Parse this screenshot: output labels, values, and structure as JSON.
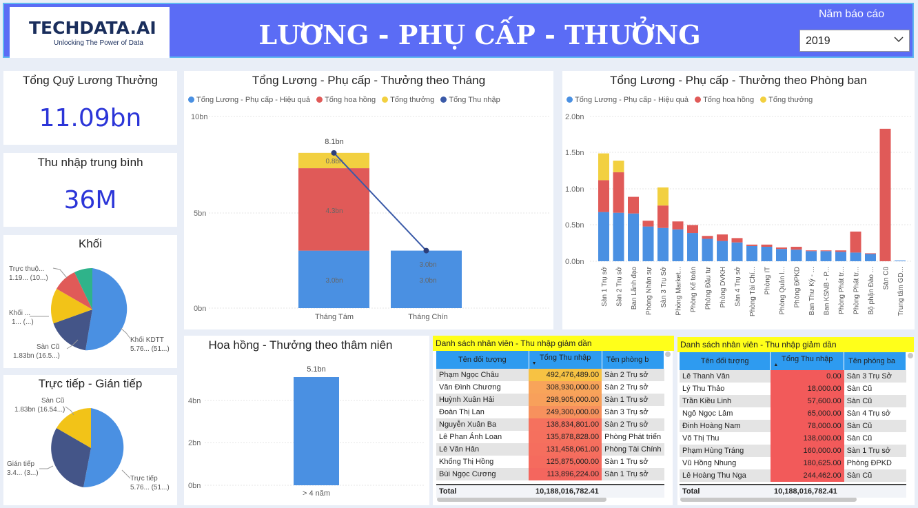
{
  "header": {
    "logo_text": "TECHDATA.AI",
    "logo_tagline": "Unlocking The Power of Data",
    "title": "LƯƠNG - PHỤ CẤP - THƯỞNG",
    "year_label": "Năm báo cáo",
    "year_value": "2019"
  },
  "kpi": {
    "total_title": "Tổng Quỹ Lương Thưởng",
    "total_value": "11.09bn",
    "avg_title": "Thu nhập trung bình",
    "avg_value": "36M"
  },
  "pie_khoi": {
    "title": "Khối",
    "labels": [
      {
        "line1": "Trực thuộ...",
        "line2": "1.19... (10...)"
      },
      {
        "line1": "Khối ...",
        "line2": "1... (...)"
      },
      {
        "line1": "Sàn Cũ",
        "line2": "1.83bn (16.5...)"
      },
      {
        "line1": "Khối KDTT",
        "line2": "5.76... (51...)"
      }
    ],
    "colors": [
      "#4a90e2",
      "#445588",
      "#f2c318",
      "#e05a58",
      "#2fb38a"
    ]
  },
  "pie_tt": {
    "title": "Trực tiếp - Gián tiếp",
    "labels": [
      {
        "line1": "Sàn Cũ",
        "line2": "1.83bn (16.54...)"
      },
      {
        "line1": "Gián tiếp",
        "line2": "3.4... (3...)"
      },
      {
        "line1": "Trực tiếp",
        "line2": "5.76... (51...)"
      }
    ],
    "colors": [
      "#4a90e2",
      "#445588",
      "#f2c318"
    ]
  },
  "monthly": {
    "title": "Tổng Lương - Phụ cấp - Thưởng theo Tháng",
    "legend": [
      "Tổng Lương - Phụ cấp - Hiệu quả",
      "Tổng hoa hồng",
      "Tổng thưởng",
      "Tổng Thu nhập"
    ],
    "y_ticks": [
      "10bn",
      "5bn",
      "0bn"
    ],
    "total_label": "8.1bn",
    "seg_labels": [
      "0.8bn",
      "4.3bn",
      "3.0bn",
      "3.0bn",
      "3.0bn"
    ],
    "colors": [
      "#4a90e2",
      "#e05a58",
      "#f2d040",
      "#3a5aa8"
    ]
  },
  "chart_data": [
    {
      "type": "bar",
      "title": "Tổng Lương - Phụ cấp - Thưởng theo Tháng",
      "categories": [
        "Tháng Tám",
        "Tháng Chín"
      ],
      "series": [
        {
          "name": "Tổng Lương - Phụ cấp - Hiệu quả",
          "values": [
            3.0,
            3.0
          ]
        },
        {
          "name": "Tổng hoa hồng",
          "values": [
            4.3,
            0
          ]
        },
        {
          "name": "Tổng thưởng",
          "values": [
            0.8,
            0
          ]
        },
        {
          "name": "Tổng Thu nhập",
          "values": [
            8.1,
            3.0
          ]
        }
      ],
      "ylim": [
        0,
        10
      ],
      "legend": "top-left"
    },
    {
      "type": "bar",
      "title": "Tổng Lương - Phụ cấp - Thưởng theo Phòng ban",
      "categories": [
        "Sàn 1 Trụ sở",
        "Sàn 2 Trụ sở",
        "Ban Lãnh đạo",
        "Phòng Nhân sự",
        "Sàn 3 Trụ Sở",
        "Phòng Market...",
        "Phòng Kế toán",
        "Phòng Đầu tư",
        "Phòng DVKH",
        "Sàn 4 Trụ sở",
        "Phòng Tài Chí...",
        "Phòng IT",
        "Phòng Quản l...",
        "Phòng ĐPKD",
        "Ban Thư Ký - ...",
        "Ban KSNB - P...",
        "Phòng Phát tr...",
        "Phòng Phát tr...",
        "Bộ phận Đào ...",
        "Sàn Cũ",
        "Trung tâm GD..."
      ],
      "series": [
        {
          "name": "Tổng Lương - Phụ cấp - Hiệu quả",
          "values": [
            0.68,
            0.67,
            0.66,
            0.48,
            0.46,
            0.44,
            0.39,
            0.31,
            0.28,
            0.26,
            0.21,
            0.2,
            0.17,
            0.16,
            0.14,
            0.14,
            0.13,
            0.12,
            0.1,
            0,
            0.01
          ]
        },
        {
          "name": "Tổng hoa hồng",
          "values": [
            0.44,
            0.56,
            0.23,
            0.08,
            0.31,
            0.11,
            0.11,
            0.04,
            0.09,
            0.06,
            0.02,
            0.03,
            0.02,
            0.04,
            0.01,
            0.01,
            0.02,
            0.29,
            0.01,
            1.83,
            0
          ]
        },
        {
          "name": "Tổng thưởng",
          "values": [
            0.37,
            0.16,
            0,
            0,
            0.25,
            0,
            0,
            0,
            0,
            0,
            0,
            0,
            0,
            0,
            0,
            0,
            0,
            0,
            0,
            0,
            0
          ]
        }
      ],
      "ylim": [
        0,
        2.0
      ],
      "legend": "top-left"
    },
    {
      "type": "bar",
      "title": "Hoa hồng - Thưởng theo thâm niên",
      "categories": [
        "> 4 năm"
      ],
      "values": [
        5.1
      ],
      "ylim": [
        0,
        6
      ]
    }
  ],
  "dept": {
    "title": "Tổng Lương - Phụ cấp - Thưởng theo Phòng ban",
    "legend": [
      "Tổng Lương - Phụ cấp - Hiệu quả",
      "Tổng hoa hồng",
      "Tổng thưởng"
    ],
    "y_ticks": [
      "2.0bn",
      "1.5bn",
      "1.0bn",
      "0.5bn",
      "0.0bn"
    ]
  },
  "seniority": {
    "title": "Hoa hồng - Thưởng theo thâm niên",
    "y_ticks": [
      "4bn",
      "2bn",
      "0bn"
    ],
    "value_label": "5.1bn"
  },
  "table_left": {
    "banner": "Danh sách nhân viên - Thu nhập giảm dần",
    "headers": [
      "Tên đối tượng",
      "Tổng Thu nhập",
      "Tên phòng b"
    ],
    "rows": [
      [
        "Phạm Ngọc Châu",
        "492,476,489.00",
        "Sàn 2 Trụ sở"
      ],
      [
        "Văn Đình Chương",
        "308,930,000.00",
        "Sàn 2 Trụ sở"
      ],
      [
        "Huỳnh Xuân Hải",
        "298,905,000.00",
        "Sàn 1 Trụ sở"
      ],
      [
        "Đoàn Thị Lan",
        "249,300,000.00",
        "Sàn 3 Trụ sở"
      ],
      [
        "Nguyễn Xuân Ba",
        "138,834,801.00",
        "Sàn 2 Trụ sở"
      ],
      [
        "Lê Phan Ánh Loan",
        "135,878,828.00",
        "Phòng Phát triển"
      ],
      [
        "Lê Văn Hân",
        "131,458,061.00",
        "Phòng Tài Chính"
      ],
      [
        "Khổng Thị Hồng",
        "125,875,000.00",
        "Sàn 1 Trụ sở"
      ],
      [
        "Bùi Ngọc Cương",
        "113,896,224.00",
        "Sàn 1 Trụ sở"
      ]
    ],
    "heat": [
      "#f7c243",
      "#f8a45a",
      "#f8a05b",
      "#f7915d",
      "#f5715e",
      "#f5705e",
      "#f56e5e",
      "#f56b5e",
      "#f4665e"
    ],
    "total_label": "Total",
    "total_value": "10,188,016,782.41"
  },
  "table_right": {
    "banner": "Danh sách nhân viên - Thu nhập giảm dần",
    "headers": [
      "Tên đối tượng",
      "Tổng Thu nhập",
      "Tên phòng ba"
    ],
    "rows": [
      [
        "Lê Thanh Vân",
        "0.00",
        "Sàn 3 Trụ Sở"
      ],
      [
        "Lý Thu Thảo",
        "18,000.00",
        "Sàn Cũ"
      ],
      [
        "Trần Kiều Linh",
        "57,600.00",
        "Sàn Cũ"
      ],
      [
        "Ngô Ngọc Lâm",
        "65,000.00",
        "Sàn 4 Trụ sở"
      ],
      [
        "Đinh Hoàng Nam",
        "78,000.00",
        "Sàn Cũ"
      ],
      [
        "Võ Thị Thu",
        "138,000.00",
        "Sàn Cũ"
      ],
      [
        "Phạm Hùng Tráng",
        "160,000.00",
        "Sàn 1 Trụ sở"
      ],
      [
        "Vũ Hồng Nhung",
        "180,625.00",
        "Phòng ĐPKD"
      ],
      [
        "Lê Hoàng Thu Nga",
        "244,462.00",
        "Sàn Cũ"
      ]
    ],
    "heat": "#f25a5a",
    "total_label": "Total",
    "total_value": "10,188,016,782.41"
  }
}
